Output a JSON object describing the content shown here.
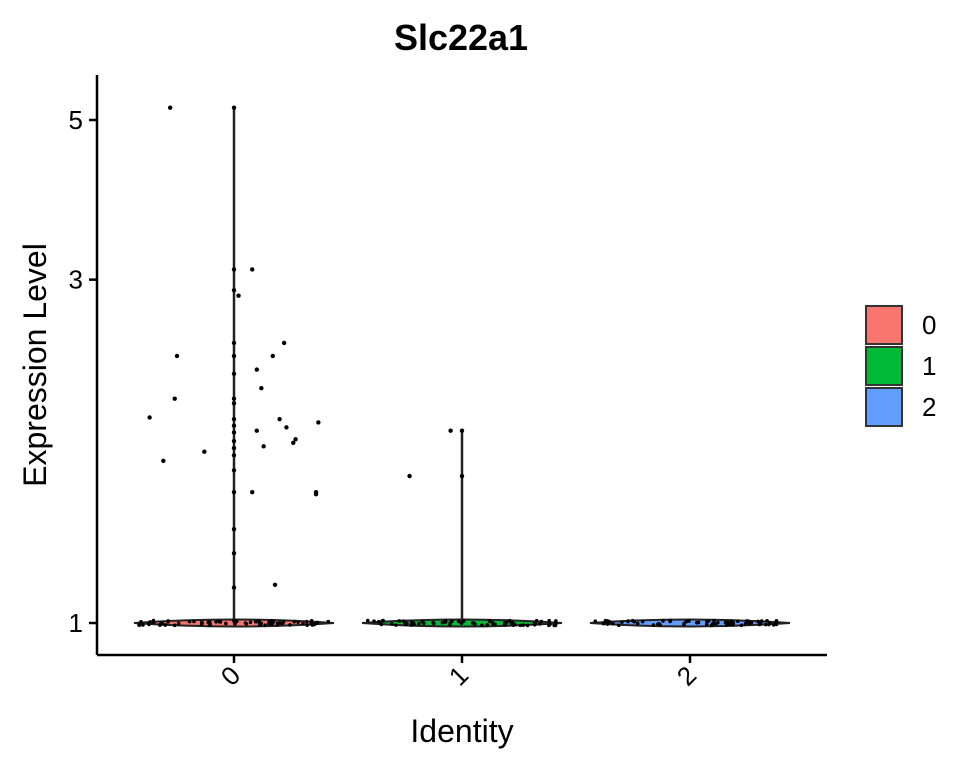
{
  "chart_data": {
    "type": "violin",
    "title": "Slc22a1",
    "xlabel": "Identity",
    "ylabel": "Expression Level",
    "categories": [
      "0",
      "1",
      "2"
    ],
    "colors": [
      "#F8766D",
      "#00BA38",
      "#619CFF"
    ],
    "y_scale": "log",
    "y_ticks": [
      1,
      3,
      5
    ],
    "ylim": [
      0.94,
      5.6
    ],
    "legend_position": "right",
    "grid": false,
    "series": [
      {
        "category": "0",
        "max": 5.2,
        "points": [
          {
            "dx": -0.28,
            "y": 5.2
          },
          {
            "dx": 0.0,
            "y": 5.2
          },
          {
            "dx": 0.08,
            "y": 3.1
          },
          {
            "dx": 0.0,
            "y": 3.1
          },
          {
            "dx": 0.0,
            "y": 2.9
          },
          {
            "dx": 0.02,
            "y": 2.85
          },
          {
            "dx": 0.22,
            "y": 2.45
          },
          {
            "dx": 0.0,
            "y": 2.45
          },
          {
            "dx": -0.25,
            "y": 2.35
          },
          {
            "dx": 0.0,
            "y": 2.35
          },
          {
            "dx": 0.17,
            "y": 2.35
          },
          {
            "dx": 0.1,
            "y": 2.25
          },
          {
            "dx": 0.0,
            "y": 2.22
          },
          {
            "dx": 0.12,
            "y": 2.12
          },
          {
            "dx": -0.26,
            "y": 2.05
          },
          {
            "dx": 0.0,
            "y": 2.05
          },
          {
            "dx": 0.0,
            "y": 2.02
          },
          {
            "dx": -0.37,
            "y": 1.93
          },
          {
            "dx": 0.0,
            "y": 1.92
          },
          {
            "dx": 0.2,
            "y": 1.92
          },
          {
            "dx": 0.37,
            "y": 1.9
          },
          {
            "dx": 0.0,
            "y": 1.88
          },
          {
            "dx": 0.23,
            "y": 1.87
          },
          {
            "dx": 0.1,
            "y": 1.85
          },
          {
            "dx": 0.0,
            "y": 1.84
          },
          {
            "dx": 0.27,
            "y": 1.8
          },
          {
            "dx": 0.26,
            "y": 1.78
          },
          {
            "dx": 0.0,
            "y": 1.79
          },
          {
            "dx": 0.13,
            "y": 1.76
          },
          {
            "dx": 0.0,
            "y": 1.75
          },
          {
            "dx": -0.13,
            "y": 1.73
          },
          {
            "dx": 0.0,
            "y": 1.71
          },
          {
            "dx": -0.31,
            "y": 1.68
          },
          {
            "dx": 0.0,
            "y": 1.63
          },
          {
            "dx": 0.0,
            "y": 1.52
          },
          {
            "dx": 0.08,
            "y": 1.52
          },
          {
            "dx": 0.36,
            "y": 1.52
          },
          {
            "dx": 0.36,
            "y": 1.51
          },
          {
            "dx": 0.0,
            "y": 1.35
          },
          {
            "dx": 0.0,
            "y": 1.25
          },
          {
            "dx": 0.18,
            "y": 1.13
          },
          {
            "dx": 0.0,
            "y": 1.12
          }
        ]
      },
      {
        "category": "1",
        "max": 1.85,
        "points": [
          {
            "dx": -0.05,
            "y": 1.85
          },
          {
            "dx": 0.0,
            "y": 1.85
          },
          {
            "dx": -0.23,
            "y": 1.6
          },
          {
            "dx": 0.0,
            "y": 1.6
          }
        ]
      },
      {
        "category": "2",
        "max": 1.01,
        "points": []
      }
    ],
    "legend": [
      "0",
      "1",
      "2"
    ]
  }
}
